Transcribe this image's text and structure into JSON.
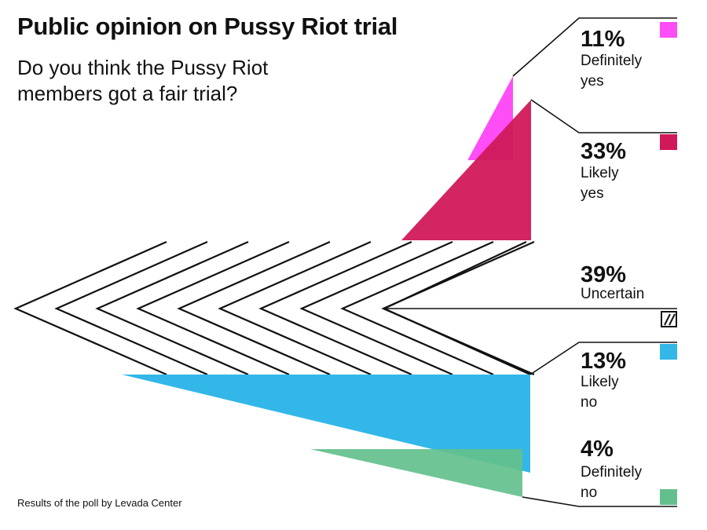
{
  "title": "Public opinion on Pussy Riot trial",
  "subtitle": "Do you think the Pussy Riot members got a fair trial?",
  "source": "Results of the poll by Levada Center",
  "chart_data": {
    "type": "area",
    "categories": [
      "Definitely yes",
      "Likely yes",
      "Uncertain",
      "Likely no",
      "Definitely no"
    ],
    "values": [
      11,
      33,
      39,
      13,
      4
    ],
    "value_labels": [
      "11%",
      "33%",
      "39%",
      "13%",
      "4%"
    ],
    "label_lines": [
      [
        "Definitely",
        "yes"
      ],
      [
        "Likely",
        "yes"
      ],
      [
        "Uncertain"
      ],
      [
        "Likely",
        "no"
      ],
      [
        "Definitely",
        "no"
      ]
    ],
    "colors": [
      "#ff4df7",
      "#d0195a",
      "hatched",
      "#33b7e8",
      "#63c08c"
    ],
    "legend_position": "right"
  }
}
